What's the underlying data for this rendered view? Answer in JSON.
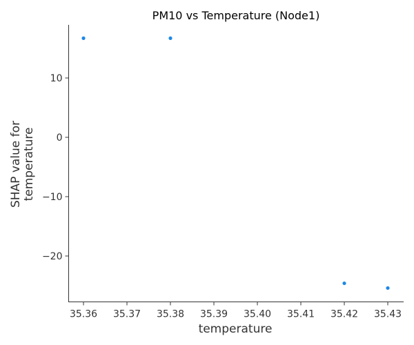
{
  "chart_data": {
    "type": "scatter",
    "title": "PM10 vs Temperature (Node1)",
    "xlabel": "temperature",
    "ylabel_lines": [
      "SHAP value for",
      "temperature"
    ],
    "x_ticks": [
      35.36,
      35.37,
      35.38,
      35.39,
      35.4,
      35.41,
      35.42,
      35.43
    ],
    "x_tick_labels": [
      "35.36",
      "35.37",
      "35.38",
      "35.39",
      "35.40",
      "35.41",
      "35.42",
      "35.43"
    ],
    "y_ticks": [
      10,
      0,
      -10,
      -20
    ],
    "y_tick_labels": [
      "10",
      "0",
      "−10",
      "−20"
    ],
    "xlim": [
      35.36,
      35.43
    ],
    "ylim": [
      -25.4,
      16.7
    ],
    "points": [
      {
        "x": 35.36,
        "y": 16.7
      },
      {
        "x": 35.38,
        "y": 16.7
      },
      {
        "x": 35.42,
        "y": -24.6
      },
      {
        "x": 35.43,
        "y": -25.4
      }
    ],
    "point_color": "#1e88e5",
    "grid": false,
    "spines": "left-bottom"
  }
}
